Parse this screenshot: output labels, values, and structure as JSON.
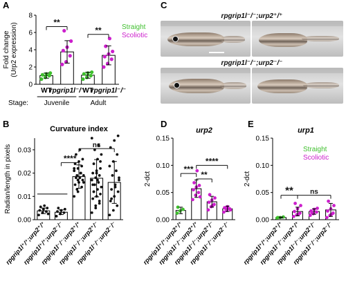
{
  "panel_letters": [
    "A",
    "B",
    "C",
    "D",
    "E"
  ],
  "panel_c": {
    "genotype_top": "rpgrip1l⁻/⁻;urp2⁺/⁺",
    "genotype_bottom": "rpgrip1l⁻/⁻;urp2⁻/⁻"
  },
  "colors": {
    "straight": "#3fbf2e",
    "scoliotic": "#cc1fcc",
    "black": "#111111",
    "sig": "#111111"
  },
  "chart_data": [
    {
      "panel": "A",
      "type": "bar",
      "title": "",
      "ylabel": "Fold change (Urp2 expression)",
      "ylim": [
        0,
        8
      ],
      "yticks": [
        0,
        2,
        4,
        6,
        8
      ],
      "categories": [
        "WT",
        "rpgrip1l⁻/⁻",
        "WT",
        "rpgrip1l⁻/⁻"
      ],
      "group_label_prefix": "Stage:",
      "groups": [
        {
          "label": "Juvenile",
          "members": [
            0,
            1
          ]
        },
        {
          "label": "Adult",
          "members": [
            2,
            3
          ]
        }
      ],
      "legend": [
        "Straight",
        "Scoliotic"
      ],
      "legend_position": "top-right",
      "bars": [
        {
          "mean": 1.0,
          "err": 0.3,
          "class": "straight",
          "points": [
            0.6,
            0.8,
            1.0,
            1.1,
            1.2,
            1.3
          ]
        },
        {
          "mean": 3.75,
          "err": 1.3,
          "class": "scoliotic",
          "points": [
            2.3,
            2.6,
            3.3,
            3.9,
            4.3,
            5.0,
            6.2
          ]
        },
        {
          "mean": 1.05,
          "err": 0.35,
          "class": "straight",
          "points": [
            0.6,
            0.8,
            1.0,
            1.2,
            1.3,
            1.4
          ]
        },
        {
          "mean": 3.35,
          "err": 1.1,
          "class": "scoliotic",
          "points": [
            2.0,
            2.4,
            2.9,
            3.2,
            3.5,
            3.8,
            4.4,
            5.3
          ]
        }
      ],
      "significance": [
        {
          "from": 0,
          "to": 1,
          "label": "**"
        },
        {
          "from": 2,
          "to": 3,
          "label": "**"
        }
      ]
    },
    {
      "panel": "B",
      "type": "bar",
      "title": "Curvature index",
      "ylabel": "Radian/length in pixels",
      "ylim": [
        0,
        0.035
      ],
      "yticks": [
        0.0,
        0.01,
        0.02,
        0.03
      ],
      "categories": [
        "rpgrip1l⁺/⁺;urp2⁺/⁺",
        "rpgrip1l⁺/⁺;urp2⁻/⁻",
        "rpgrip1l⁻/⁻;urp2⁺/⁺",
        "rpgrip1l⁻/⁻;urp2⁺/⁻",
        "rpgrip1l⁻/⁻;urp2⁻/⁻"
      ],
      "bars": [
        {
          "mean": 0.0038,
          "err": 0.0012,
          "points": [
            0.002,
            0.003,
            0.0035,
            0.004,
            0.0045,
            0.005,
            0.0055,
            0.006,
            0.0025
          ]
        },
        {
          "mean": 0.0032,
          "err": 0.001,
          "points": [
            0.0015,
            0.0025,
            0.003,
            0.0035,
            0.004,
            0.0045,
            0.005
          ]
        },
        {
          "mean": 0.0185,
          "err": 0.005,
          "points": [
            0.01,
            0.012,
            0.014,
            0.015,
            0.016,
            0.017,
            0.018,
            0.018,
            0.019,
            0.019,
            0.02,
            0.021,
            0.022,
            0.023,
            0.024,
            0.025,
            0.026,
            0.028,
            0.03,
            0.016,
            0.013,
            0.02,
            0.022,
            0.017
          ]
        },
        {
          "mean": 0.0178,
          "err": 0.008,
          "points": [
            0.003,
            0.005,
            0.007,
            0.009,
            0.01,
            0.011,
            0.012,
            0.013,
            0.014,
            0.015,
            0.016,
            0.017,
            0.018,
            0.019,
            0.02,
            0.021,
            0.022,
            0.024,
            0.026,
            0.028,
            0.03,
            0.032,
            0.035,
            0.006,
            0.008,
            0.015,
            0.02,
            0.025,
            0.012,
            0.017
          ]
        },
        {
          "mean": 0.016,
          "err": 0.009,
          "points": [
            0.002,
            0.004,
            0.006,
            0.008,
            0.01,
            0.012,
            0.013,
            0.015,
            0.017,
            0.019,
            0.021,
            0.023,
            0.025,
            0.028,
            0.031,
            0.034,
            0.036,
            0.009,
            0.014,
            0.018
          ]
        }
      ],
      "sig_reference_line": {
        "from": 0,
        "to": 1,
        "value": 0.011
      },
      "significance": [
        {
          "from": 1,
          "to": 2,
          "label": "****",
          "y": 0.0245
        },
        {
          "from": 2,
          "to": 4,
          "label": "ns",
          "y": 0.0305
        }
      ]
    },
    {
      "panel": "D",
      "type": "bar",
      "title": "urp2",
      "ylabel": "2-dct",
      "ylim": [
        0,
        0.15
      ],
      "yticks": [
        0.0,
        0.05,
        0.1,
        0.15
      ],
      "categories": [
        "rpgrip1l⁺/⁺;urp2⁺/⁺",
        "rpgrip1l⁻/⁻;urp2⁺/⁺",
        "rpgrip1l⁻/⁻;urp2⁺/⁻",
        "rpgrip1l⁻/⁻;urp2⁻/⁻"
      ],
      "bars": [
        {
          "mean": 0.017,
          "err": 0.006,
          "class": "straight",
          "points": [
            0.012,
            0.016,
            0.019,
            0.023
          ]
        },
        {
          "mean": 0.057,
          "err": 0.016,
          "class": "scoliotic",
          "points": [
            0.037,
            0.045,
            0.05,
            0.055,
            0.06,
            0.063,
            0.068,
            0.09,
            0.042
          ]
        },
        {
          "mean": 0.033,
          "err": 0.01,
          "class": "scoliotic",
          "points": [
            0.018,
            0.024,
            0.028,
            0.032,
            0.036,
            0.04,
            0.046,
            0.026
          ]
        },
        {
          "mean": 0.02,
          "err": 0.005,
          "class": "scoliotic",
          "points": [
            0.014,
            0.017,
            0.02,
            0.022,
            0.024,
            0.018,
            0.021
          ]
        }
      ],
      "significance": [
        {
          "from": 0,
          "to": 1,
          "label": "***",
          "y": 0.085
        },
        {
          "from": 1,
          "to": 2,
          "label": "**",
          "y": 0.075
        },
        {
          "from": 1,
          "to": 3,
          "label": "****",
          "y": 0.1
        }
      ]
    },
    {
      "panel": "E",
      "type": "bar",
      "title": "urp1",
      "ylabel": "2-dct",
      "ylim": [
        0,
        0.15
      ],
      "yticks": [
        0.0,
        0.05,
        0.1,
        0.15
      ],
      "legend": [
        "Straight",
        "Scoliotic"
      ],
      "legend_position": "top-right",
      "categories": [
        "rpgrip1l⁺/⁺;urp2⁺/⁺",
        "rpgrip1l⁻/⁻;urp2⁺/⁺",
        "rpgrip1l⁻/⁻;urp2⁺/⁻",
        "rpgrip1l⁻/⁻;urp2⁻/⁻"
      ],
      "bars": [
        {
          "mean": 0.004,
          "err": 0.001,
          "class": "straight",
          "points": [
            0.003,
            0.004,
            0.005,
            0.004
          ]
        },
        {
          "mean": 0.015,
          "err": 0.008,
          "class": "scoliotic",
          "points": [
            0.006,
            0.009,
            0.012,
            0.015,
            0.02,
            0.026,
            0.03,
            0.01
          ]
        },
        {
          "mean": 0.015,
          "err": 0.005,
          "class": "scoliotic",
          "points": [
            0.008,
            0.011,
            0.014,
            0.016,
            0.019,
            0.021,
            0.013
          ]
        },
        {
          "mean": 0.018,
          "err": 0.012,
          "class": "scoliotic",
          "points": [
            0.004,
            0.008,
            0.012,
            0.016,
            0.02,
            0.026,
            0.034,
            0.01
          ]
        }
      ],
      "significance": [
        {
          "from": 0,
          "to": 1,
          "label": "**",
          "y": 0.045
        },
        {
          "from": 1,
          "to": 3,
          "label": "ns",
          "y": 0.045
        }
      ]
    }
  ]
}
